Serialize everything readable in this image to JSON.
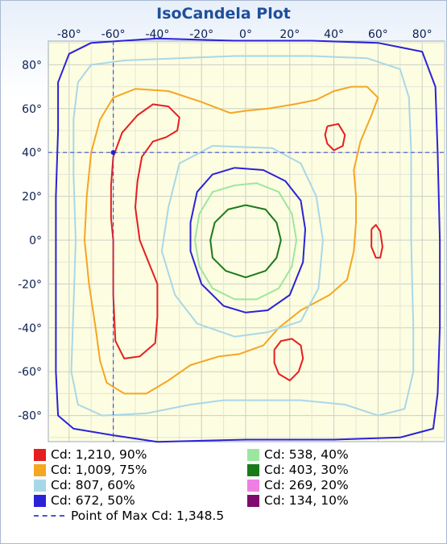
{
  "chart_data": {
    "type": "contour",
    "title": "IsoCandela Plot",
    "x_ticks": [
      "-80°",
      "-60°",
      "-40°",
      "-20°",
      "0°",
      "20°",
      "40°",
      "60°",
      "80°"
    ],
    "y_ticks": [
      "80°",
      "60°",
      "40°",
      "20°",
      "0°",
      "-20°",
      "-40°",
      "-60°",
      "-80°"
    ],
    "xlim": [
      -90,
      90
    ],
    "ylim": [
      -90,
      90
    ],
    "grid": true,
    "max_point": {
      "x": -60,
      "y": 40
    },
    "contours": [
      {
        "label": "Cd: 1,210, 90%",
        "color": "#e51f1f",
        "polylines": [
          [
            [
              -60,
              0
            ],
            [
              -61,
              10
            ],
            [
              -61,
              25
            ],
            [
              -60,
              38
            ],
            [
              -56,
              49
            ],
            [
              -49,
              57
            ],
            [
              -42,
              62
            ],
            [
              -35,
              61
            ],
            [
              -30,
              56
            ],
            [
              -31,
              50
            ],
            [
              -36,
              47
            ],
            [
              -42,
              45
            ],
            [
              -47,
              38
            ],
            [
              -49,
              27
            ],
            [
              -50,
              15
            ],
            [
              -48,
              0
            ],
            [
              -44,
              -10
            ],
            [
              -40,
              -20
            ],
            [
              -40,
              -35
            ],
            [
              -41,
              -47
            ],
            [
              -48,
              -53
            ],
            [
              -55,
              -54
            ],
            [
              -59,
              -46
            ],
            [
              -60,
              -25
            ],
            [
              -60,
              0
            ]
          ],
          [
            [
              37,
              52
            ],
            [
              42,
              53
            ],
            [
              45,
              48
            ],
            [
              44,
              43
            ],
            [
              40,
              41
            ],
            [
              37,
              44
            ],
            [
              36,
              48
            ],
            [
              37,
              52
            ]
          ],
          [
            [
              57,
              5
            ],
            [
              59,
              7
            ],
            [
              61,
              4
            ],
            [
              62,
              -3
            ],
            [
              61,
              -8
            ],
            [
              59,
              -8
            ],
            [
              57,
              -3
            ],
            [
              57,
              5
            ]
          ],
          [
            [
              13,
              -50
            ],
            [
              16,
              -46
            ],
            [
              21,
              -45
            ],
            [
              25,
              -48
            ],
            [
              26,
              -54
            ],
            [
              24,
              -60
            ],
            [
              20,
              -64
            ],
            [
              15,
              -61
            ],
            [
              13,
              -56
            ],
            [
              13,
              -50
            ]
          ]
        ]
      },
      {
        "label": "Cd: 1,009, 75%",
        "color": "#f5a623",
        "polylines": [
          [
            [
              -7,
              58
            ],
            [
              -20,
              63
            ],
            [
              -35,
              68
            ],
            [
              -50,
              69
            ],
            [
              -60,
              65
            ],
            [
              -66,
              55
            ],
            [
              -70,
              40
            ],
            [
              -72,
              20
            ],
            [
              -73,
              0
            ],
            [
              -71,
              -20
            ],
            [
              -68,
              -40
            ],
            [
              -66,
              -55
            ],
            [
              -63,
              -65
            ],
            [
              -55,
              -70
            ],
            [
              -45,
              -70
            ],
            [
              -35,
              -64
            ],
            [
              -25,
              -57
            ],
            [
              -12,
              -53
            ],
            [
              -3,
              -52
            ],
            [
              8,
              -48
            ],
            [
              15,
              -40
            ],
            [
              25,
              -32
            ],
            [
              38,
              -25
            ],
            [
              46,
              -18
            ],
            [
              49,
              -5
            ],
            [
              50,
              8
            ],
            [
              50,
              20
            ],
            [
              49,
              32
            ],
            [
              52,
              45
            ],
            [
              57,
              57
            ],
            [
              60,
              65
            ],
            [
              55,
              70
            ],
            [
              48,
              70
            ],
            [
              40,
              68
            ],
            [
              32,
              64
            ],
            [
              22,
              62
            ],
            [
              10,
              60
            ],
            [
              0,
              59
            ],
            [
              -7,
              58
            ]
          ]
        ]
      },
      {
        "label": "Cd: 807, 60%",
        "color": "#a8d8e8",
        "polylines": [
          [
            [
              -5,
              84
            ],
            [
              -30,
              83
            ],
            [
              -55,
              82
            ],
            [
              -70,
              80
            ],
            [
              -76,
              72
            ],
            [
              -78,
              55
            ],
            [
              -78,
              30
            ],
            [
              -77,
              0
            ],
            [
              -78,
              -30
            ],
            [
              -79,
              -60
            ],
            [
              -76,
              -75
            ],
            [
              -65,
              -80
            ],
            [
              -45,
              -79
            ],
            [
              -25,
              -75
            ],
            [
              -10,
              -73
            ],
            [
              5,
              -73
            ],
            [
              25,
              -73
            ],
            [
              45,
              -75
            ],
            [
              60,
              -80
            ],
            [
              72,
              -77
            ],
            [
              76,
              -60
            ],
            [
              76,
              -40
            ],
            [
              75,
              0
            ],
            [
              75,
              40
            ],
            [
              74,
              65
            ],
            [
              70,
              78
            ],
            [
              55,
              83
            ],
            [
              30,
              84
            ],
            [
              -5,
              84
            ]
          ],
          [
            [
              -15,
              43
            ],
            [
              -30,
              35
            ],
            [
              -35,
              15
            ],
            [
              -38,
              -5
            ],
            [
              -32,
              -25
            ],
            [
              -22,
              -38
            ],
            [
              -5,
              -44
            ],
            [
              10,
              -42
            ],
            [
              25,
              -37
            ],
            [
              33,
              -22
            ],
            [
              35,
              0
            ],
            [
              32,
              20
            ],
            [
              25,
              35
            ],
            [
              12,
              42
            ],
            [
              -15,
              43
            ]
          ]
        ]
      },
      {
        "label": "Cd: 672, 50%",
        "color": "#2a22d8",
        "polylines": [
          [
            [
              -5,
              33
            ],
            [
              -15,
              30
            ],
            [
              -22,
              22
            ],
            [
              -25,
              8
            ],
            [
              -25,
              -5
            ],
            [
              -20,
              -20
            ],
            [
              -10,
              -30
            ],
            [
              0,
              -33
            ],
            [
              10,
              -32
            ],
            [
              20,
              -25
            ],
            [
              26,
              -10
            ],
            [
              27,
              5
            ],
            [
              25,
              18
            ],
            [
              18,
              27
            ],
            [
              8,
              32
            ],
            [
              -5,
              33
            ]
          ],
          [
            [
              -5,
              91
            ],
            [
              -40,
              92
            ],
            [
              -70,
              90
            ],
            [
              -80,
              85
            ],
            [
              -85,
              72
            ],
            [
              -85,
              50
            ],
            [
              -86,
              20
            ],
            [
              -86,
              -20
            ],
            [
              -86,
              -60
            ],
            [
              -85,
              -80
            ],
            [
              -78,
              -86
            ],
            [
              -60,
              -89
            ],
            [
              -40,
              -92
            ],
            [
              0,
              -91
            ],
            [
              40,
              -91
            ],
            [
              70,
              -90
            ],
            [
              85,
              -86
            ],
            [
              87,
              -70
            ],
            [
              88,
              -40
            ],
            [
              88,
              0
            ],
            [
              87,
              40
            ],
            [
              86,
              70
            ],
            [
              80,
              86
            ],
            [
              60,
              90
            ],
            [
              30,
              91
            ],
            [
              -5,
              91
            ]
          ]
        ]
      },
      {
        "label": "Cd: 538, 40%",
        "color": "#9de6a0",
        "polylines": [
          [
            [
              -5,
              25
            ],
            [
              -15,
              22
            ],
            [
              -21,
              12
            ],
            [
              -23,
              0
            ],
            [
              -21,
              -12
            ],
            [
              -15,
              -22
            ],
            [
              -5,
              -27
            ],
            [
              5,
              -27
            ],
            [
              15,
              -22
            ],
            [
              21,
              -12
            ],
            [
              23,
              0
            ],
            [
              21,
              12
            ],
            [
              15,
              22
            ],
            [
              5,
              26
            ],
            [
              -5,
              25
            ]
          ]
        ]
      },
      {
        "label": "Cd: 403, 30%",
        "color": "#1a7a1a",
        "polylines": [
          [
            [
              0,
              16
            ],
            [
              -8,
              14
            ],
            [
              -14,
              8
            ],
            [
              -16,
              0
            ],
            [
              -15,
              -8
            ],
            [
              -9,
              -14
            ],
            [
              0,
              -17
            ],
            [
              9,
              -14
            ],
            [
              14,
              -8
            ],
            [
              16,
              0
            ],
            [
              14,
              8
            ],
            [
              9,
              14
            ],
            [
              0,
              16
            ]
          ]
        ]
      },
      {
        "label": "Cd: 269, 20%",
        "color": "#f07fe3",
        "polylines": []
      },
      {
        "label": "Cd: 134, 10%",
        "color": "#7f0a6e",
        "polylines": []
      }
    ],
    "max_label": "Point of Max Cd: 1,348.5"
  }
}
